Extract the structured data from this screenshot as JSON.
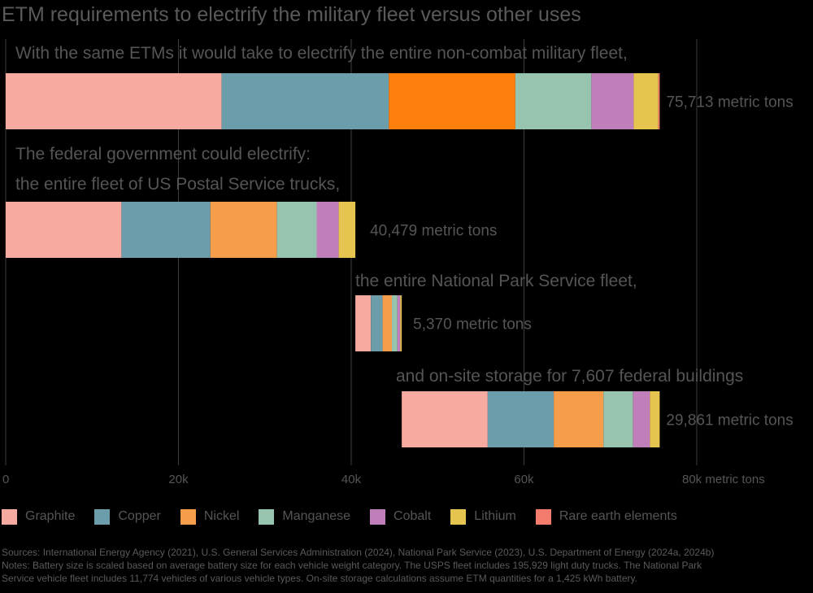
{
  "title": "ETM requirements to electrify the military fleet versus other uses",
  "chart_data": {
    "type": "bar",
    "orientation": "horizontal-stacked-waterfall",
    "categories": [
      "Military non-combat fleet",
      "US Postal Service trucks",
      "National Park Service fleet",
      "On-site storage for 7,607 federal buildings"
    ],
    "annotations": [
      "With the same ETMs it would take to electrify the entire non-combat military fleet,",
      "The federal government could electrify:",
      "the entire fleet of US Postal Service trucks,",
      "the entire National Park Service fleet,",
      "and on-site storage for 7,607 federal buildings"
    ],
    "total_labels": [
      "75,713 metric tons",
      "40,479 metric tons",
      "5,370 metric tons",
      "29,861 metric tons"
    ],
    "offsets": [
      0,
      0,
      40479,
      45849
    ],
    "series": [
      {
        "name": "Graphite",
        "color": "#f7aaa0",
        "values": [
          25000,
          13400,
          1800,
          9950
        ]
      },
      {
        "name": "Copper",
        "color": "#6b9daa",
        "values": [
          19350,
          10300,
          1350,
          7650
        ]
      },
      {
        "name": "Nickel",
        "color": "#ff7f0e",
        "values": [
          14650,
          7700,
          1080,
          5750
        ]
      },
      {
        "name": "Manganese",
        "color": "#96c4ae",
        "values": [
          8800,
          4600,
          640,
          3430
        ]
      },
      {
        "name": "Cobalt",
        "color": "#c07fba",
        "values": [
          4900,
          2550,
          330,
          1950
        ]
      },
      {
        "name": "Lithium",
        "color": "#e5c44f",
        "values": [
          2850,
          1929,
          170,
          1131
        ]
      },
      {
        "name": "Rare earth elements",
        "color": "#f47c6c",
        "values": [
          163,
          0,
          0,
          0
        ]
      }
    ],
    "segment_colors": [
      [
        "#f7aaa0",
        "#6b9daa",
        "#ff7f0e",
        "#96c4ae",
        "#c07fba",
        "#e5c44f",
        "#f47c6c"
      ],
      [
        "#f7aaa0",
        "#6b9daa",
        "#f59d4b",
        "#96c4ae",
        "#c07fba",
        "#e5c44f",
        "#f47c6c"
      ],
      [
        "#f7aaa0",
        "#6b9daa",
        "#f59d4b",
        "#96c4ae",
        "#c07fba",
        "#e5c44f",
        "#f47c6c"
      ],
      [
        "#f7aaa0",
        "#6b9daa",
        "#f59d4b",
        "#96c4ae",
        "#c07fba",
        "#e5c44f",
        "#f47c6c"
      ]
    ],
    "x_ticks": [
      {
        "value": 0,
        "label": "0"
      },
      {
        "value": 20000,
        "label": "20k"
      },
      {
        "value": 40000,
        "label": "40k"
      },
      {
        "value": 60000,
        "label": "60k"
      },
      {
        "value": 80000,
        "label": "80k metric tons"
      }
    ],
    "xlim": [
      0,
      92500
    ],
    "xlabel": "metric tons",
    "ylabel": "",
    "grid": true
  },
  "legend": [
    {
      "label": "Graphite",
      "color": "#f7aaa0"
    },
    {
      "label": "Copper",
      "color": "#6b9daa"
    },
    {
      "label": "Nickel",
      "color": "#f59d4b"
    },
    {
      "label": "Manganese",
      "color": "#96c4ae"
    },
    {
      "label": "Cobalt",
      "color": "#c07fba"
    },
    {
      "label": "Lithium",
      "color": "#e5c44f"
    },
    {
      "label": "Rare earth elements",
      "color": "#f47c6c"
    }
  ],
  "footnotes": {
    "sources": "Sources: International Energy Agency (2021), U.S. General Services Administration (2024), National Park Service (2023), U.S. Department of Energy (2024a, 2024b)",
    "notes_line1": "Notes: Battery size is scaled based on average battery size for each vehicle weight category. The USPS fleet includes 195,929 light duty trucks. The National Park",
    "notes_line2": "Service vehicle fleet includes 11,774 vehicles of various vehicle types. On-site storage calculations assume ETM quantities for a 1,425 kWh battery."
  }
}
